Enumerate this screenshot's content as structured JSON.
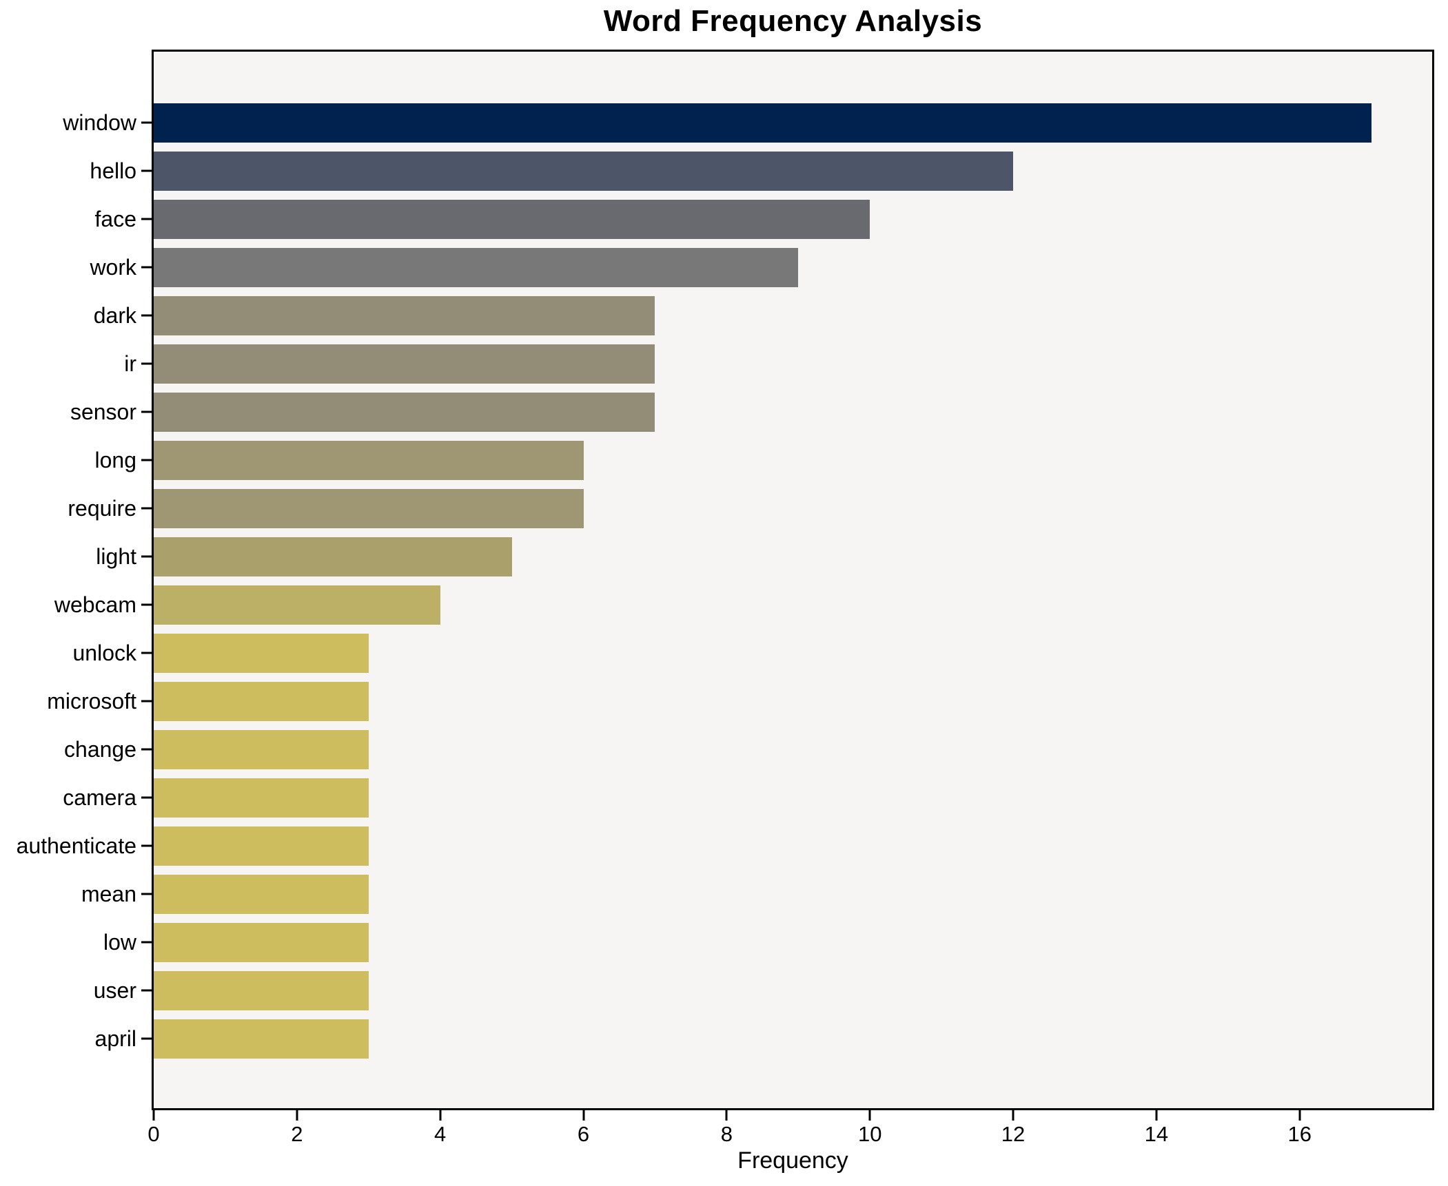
{
  "chart": {
    "title": "Word Frequency Analysis",
    "xlabel": "Frequency"
  },
  "chart_data": {
    "type": "bar",
    "orientation": "horizontal",
    "title": "Word Frequency Analysis",
    "xlabel": "Frequency",
    "ylabel": "",
    "categories": [
      "window",
      "hello",
      "face",
      "work",
      "dark",
      "ir",
      "sensor",
      "long",
      "require",
      "light",
      "webcam",
      "unlock",
      "microsoft",
      "change",
      "camera",
      "authenticate",
      "mean",
      "low",
      "user",
      "april"
    ],
    "values": [
      17,
      12,
      10,
      9,
      7,
      7,
      7,
      6,
      6,
      5,
      4,
      3,
      3,
      3,
      3,
      3,
      3,
      3,
      3,
      3
    ],
    "bar_colors": [
      "#01224e",
      "#4d5668",
      "#686a70",
      "#787879",
      "#938d78",
      "#938d78",
      "#938d78",
      "#9f9773",
      "#9f9773",
      "#aaa06c",
      "#bcb067",
      "#cdbd5f",
      "#cdbd5f",
      "#cdbd5f",
      "#cdbd5f",
      "#cdbd5f",
      "#cdbd5f",
      "#cdbd5f",
      "#cdbd5f",
      "#cdbd5f"
    ],
    "xlim": [
      0,
      17.85
    ],
    "x_tick_values": [
      0,
      2,
      4,
      6,
      8,
      10,
      12,
      14,
      16
    ],
    "x_tick_labels": [
      "0",
      "2",
      "4",
      "6",
      "8",
      "10",
      "12",
      "14",
      "16"
    ],
    "grid": false,
    "legend": "none",
    "plot_background": "#f6f5f4",
    "figure_background": "#ffffff",
    "colormap": "cividis"
  }
}
